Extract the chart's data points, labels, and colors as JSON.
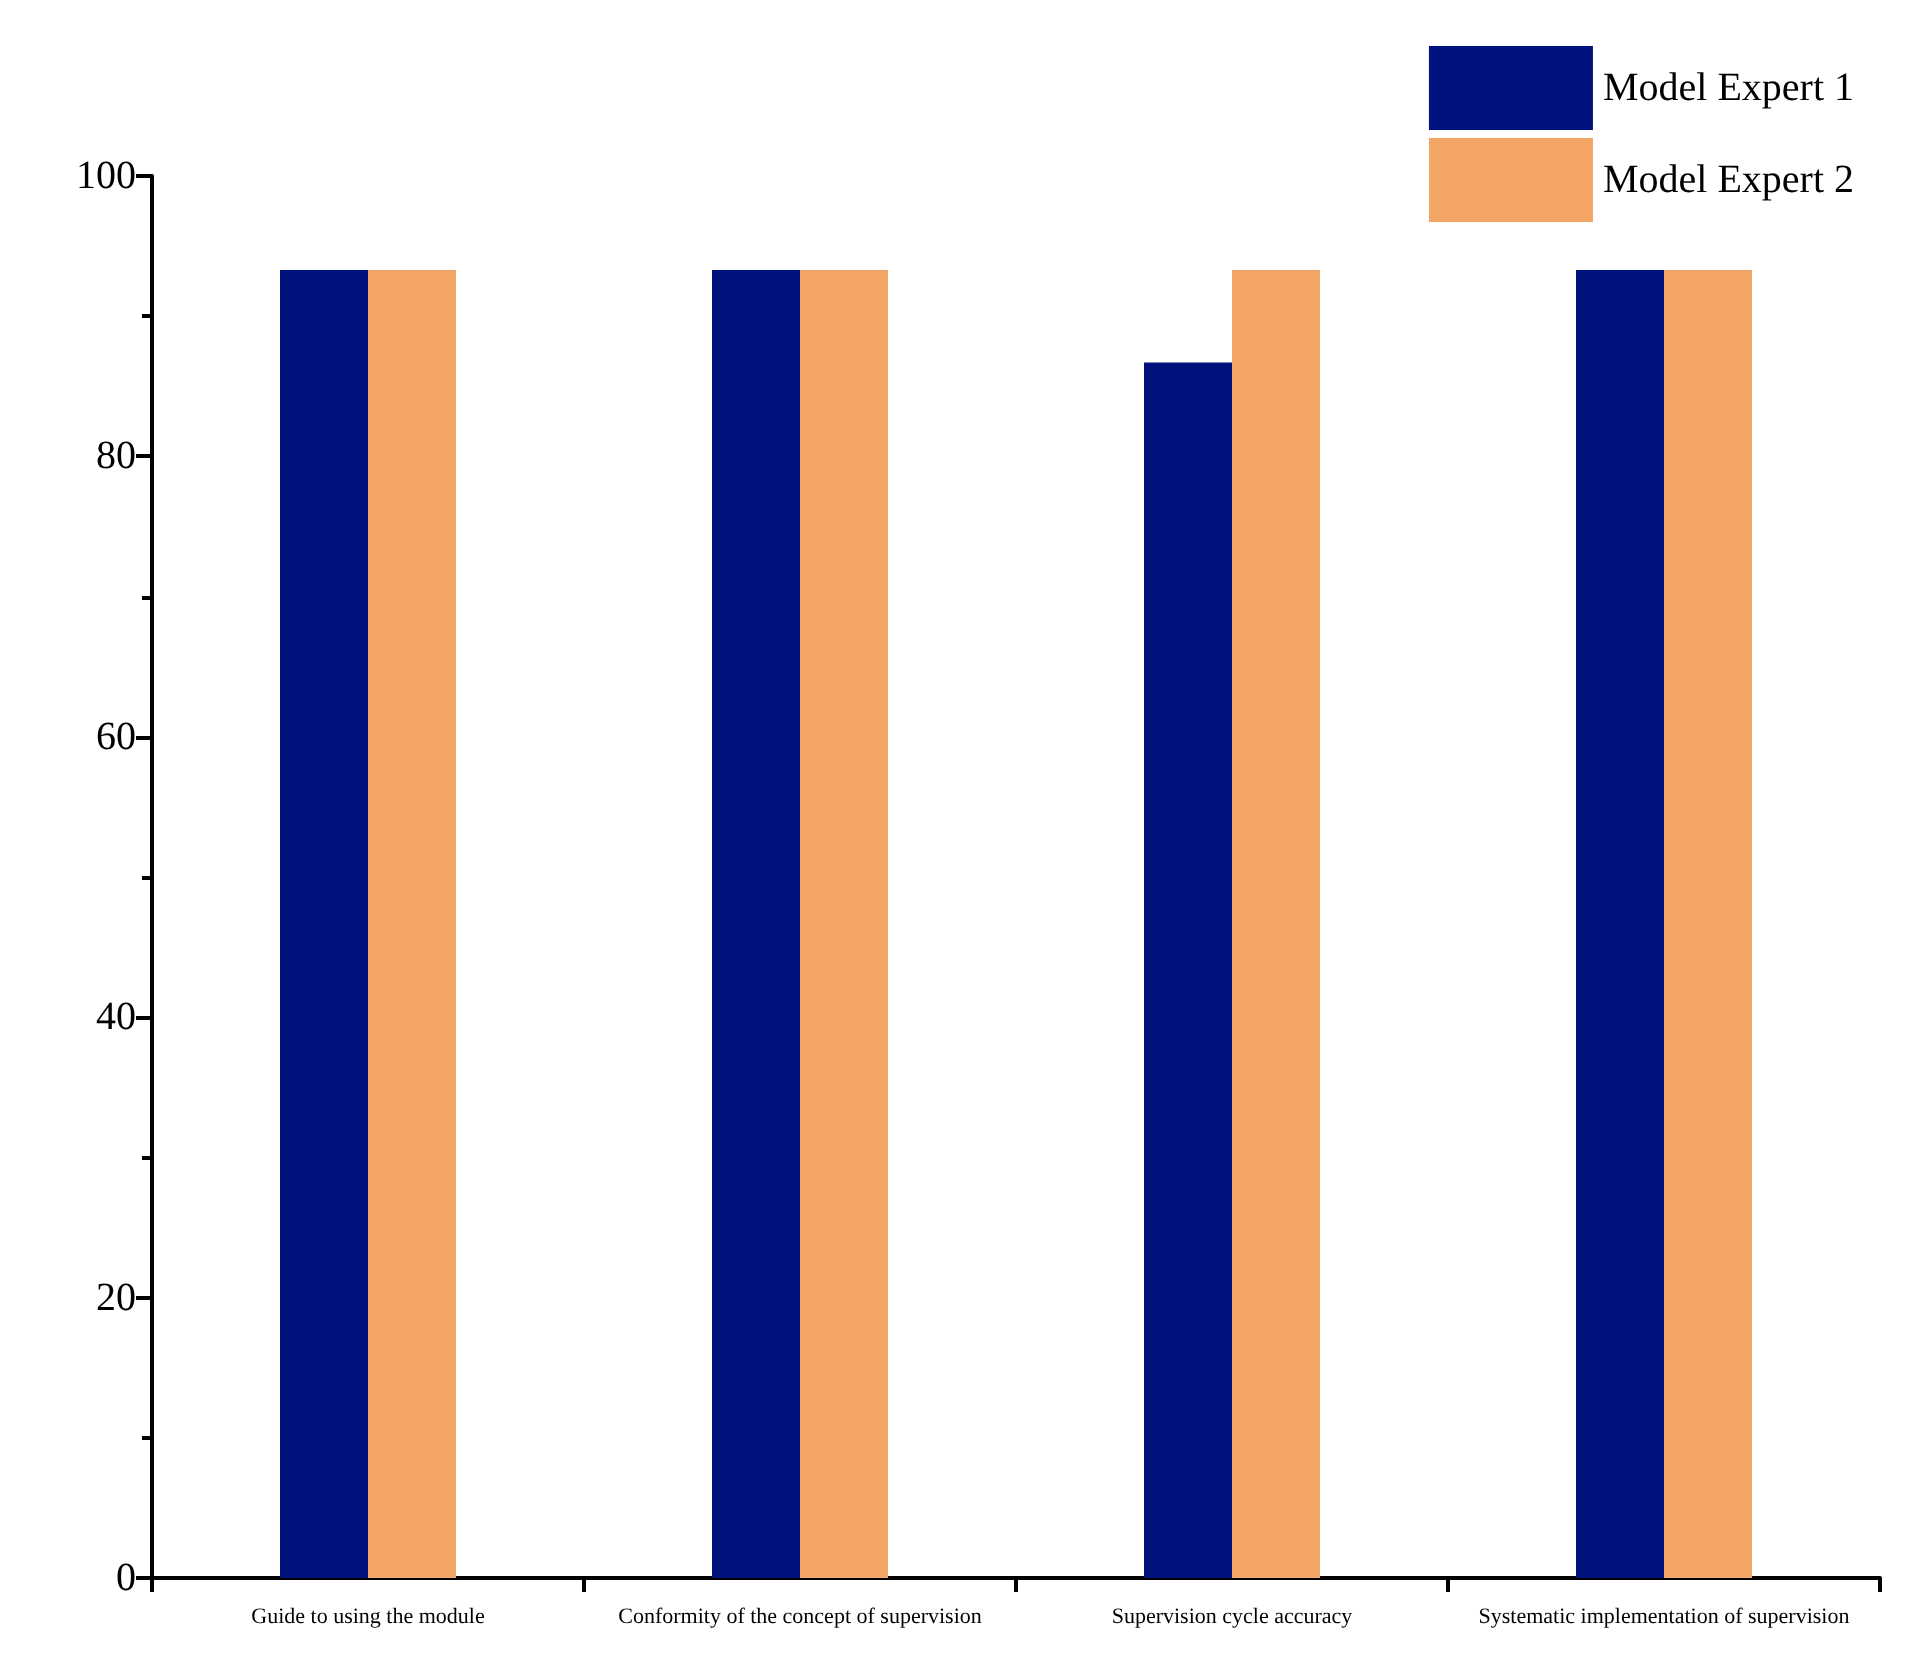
{
  "chart_data": {
    "type": "bar",
    "categories": [
      "Guide to using the module",
      "Conformity of the concept of supervision",
      "Supervision cycle accuracy",
      "Systematic implementation of supervision"
    ],
    "series": [
      {
        "name": "Model Expert 1",
        "color": "#00127d",
        "values": [
          93.3,
          93.3,
          86.7,
          93.3
        ]
      },
      {
        "name": "Model Expert 2",
        "color": "#f4a666",
        "values": [
          93.3,
          93.3,
          93.3,
          93.3
        ]
      }
    ],
    "ylim": [
      0,
      100
    ],
    "yticks": [
      0,
      20,
      40,
      60,
      80,
      100
    ],
    "grid": false,
    "legend": "top right"
  }
}
